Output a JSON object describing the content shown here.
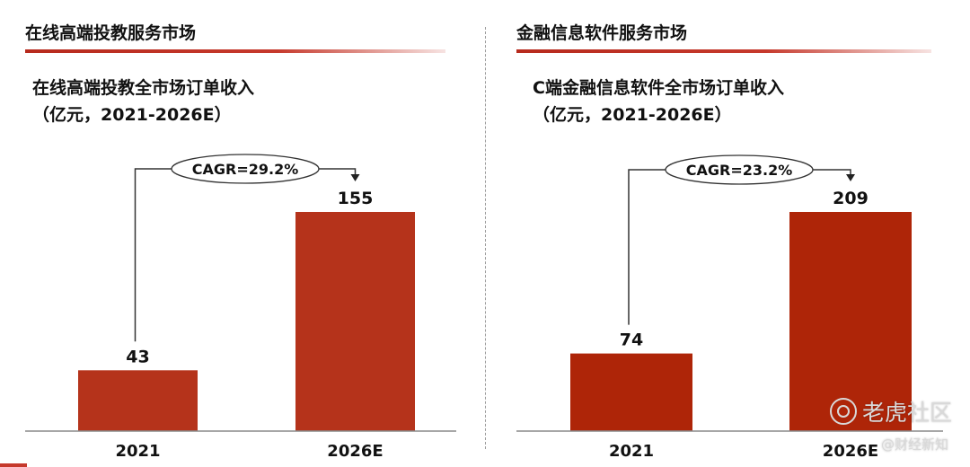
{
  "panels": [
    {
      "section_title": "在线高端投教服务市场",
      "chart_title": "在线高端投教全市场订单收入",
      "chart_subtitle": "（亿元，2021-2026E）",
      "cagr_label": "CAGR=29.2%"
    },
    {
      "section_title": "金融信息软件服务市场",
      "chart_title": "C端金融信息软件全市场订单收入",
      "chart_subtitle": "（亿元，2021-2026E）",
      "cagr_label": "CAGR=23.2%"
    }
  ],
  "watermark": {
    "brand": "老虎社区",
    "sub": "@财经新知",
    "icon": "tiger-logo-icon"
  },
  "colors": {
    "bar_left": "#b5331b",
    "bar_right": "#ae2508",
    "accent_line": "#c6392c"
  },
  "chart_data": [
    {
      "type": "bar",
      "title": "在线高端投教全市场订单收入",
      "subtitle": "（亿元，2021-2026E）",
      "categories": [
        "2021",
        "2026E"
      ],
      "values": [
        43,
        155
      ],
      "annotation": "CAGR=29.2%",
      "ylim": [
        0,
        175
      ],
      "grid": false,
      "legend": "none"
    },
    {
      "type": "bar",
      "title": "C端金融信息软件全市场订单收入",
      "subtitle": "（亿元，2021-2026E）",
      "categories": [
        "2021",
        "2026E"
      ],
      "values": [
        74,
        209
      ],
      "annotation": "CAGR=23.2%",
      "ylim": [
        0,
        236
      ],
      "grid": false,
      "legend": "none"
    }
  ]
}
